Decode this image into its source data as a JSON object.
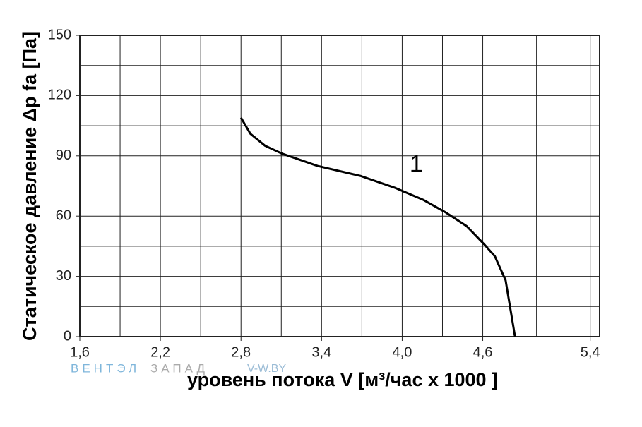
{
  "chart_data": {
    "type": "line",
    "ylabel": "Статическое давление  Δp fa [Па]",
    "xlabel": "уровень потока  V [м³/час x 1000 ]",
    "watermark": {
      "part1": "ВЕНТЭЛ",
      "part2": "ЗАПАД",
      "site": "V-W.BY"
    },
    "xlim": [
      1.6,
      5.47
    ],
    "ylim": [
      0,
      150
    ],
    "xticks": [
      {
        "value": 1.6,
        "label": "1,6"
      },
      {
        "value": 2.2,
        "label": "2,2"
      },
      {
        "value": 2.8,
        "label": "2,8"
      },
      {
        "value": 3.4,
        "label": "3,4"
      },
      {
        "value": 4.0,
        "label": "4,0"
      },
      {
        "value": 4.6,
        "label": "4,6"
      },
      {
        "value": 5.4,
        "label": "5,4"
      }
    ],
    "yticks": [
      0,
      30,
      60,
      90,
      120,
      150
    ],
    "grid": true,
    "series": [
      {
        "name": "1",
        "color": "#000000",
        "x": [
          2.8,
          2.87,
          2.98,
          3.11,
          3.37,
          3.69,
          3.95,
          4.16,
          4.32,
          4.48,
          4.61,
          4.69,
          4.77,
          4.84
        ],
        "values": [
          109,
          101,
          95,
          91,
          85,
          80,
          74,
          68,
          62,
          55,
          46,
          40,
          28,
          0
        ]
      }
    ]
  }
}
